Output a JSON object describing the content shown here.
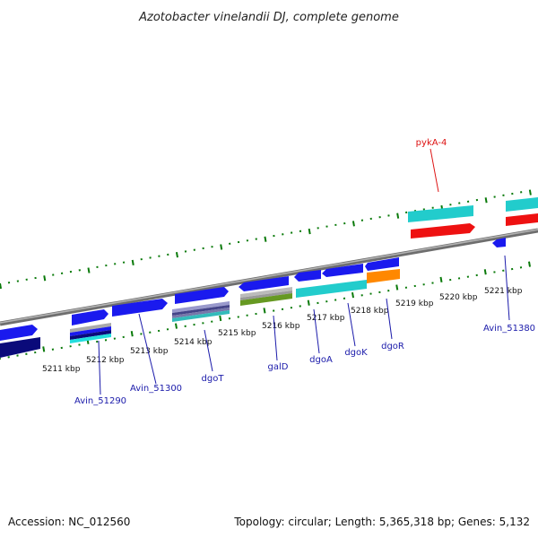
{
  "title": "Azotobacter vinelandii DJ, complete genome",
  "footer": {
    "accession": "Accession: NC_012560",
    "topology": "Topology: circular; Length: 5,365,318 bp; Genes: 5,132"
  },
  "colors": {
    "backbone": "#888888",
    "tick": "#0a7a0a",
    "gene_blue": "#1a1aee",
    "gene_navy": "#0a0a7a",
    "gene_cyan": "#22cccc",
    "gene_red": "#ee1111",
    "gene_orange": "#ff8800",
    "gene_olive": "#669922",
    "label_blue": "#1a1aaa",
    "label_red": "#dd1111"
  },
  "tick_labels": [
    "5211 kbp",
    "5212 kbp",
    "5213 kbp",
    "5214 kbp",
    "5215 kbp",
    "5216 kbp",
    "5217 kbp",
    "5218 kbp",
    "5219 kbp",
    "5220 kbp",
    "5221 kbp"
  ],
  "gene_labels": [
    "Avin_51290",
    "Avin_51300",
    "dgoT",
    "galD",
    "dgoA",
    "dgoK",
    "dgoR",
    "Avin_51380",
    "pykA-4"
  ]
}
